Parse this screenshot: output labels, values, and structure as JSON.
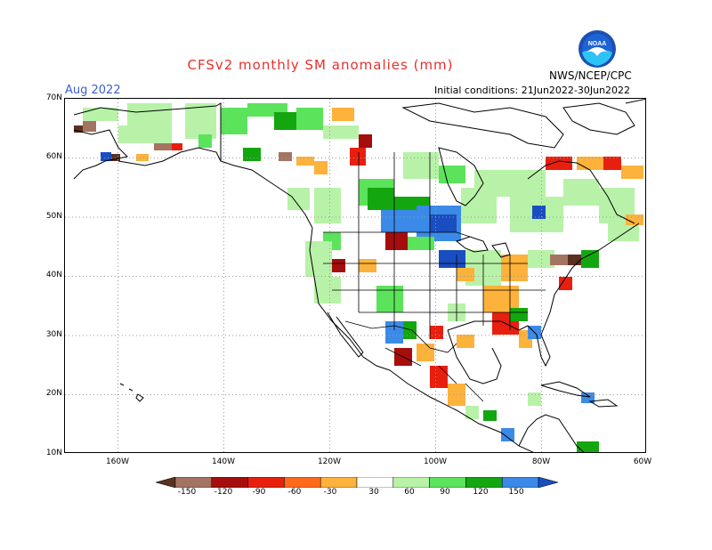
{
  "header": {
    "title": "CFSv2 monthly SM anomalies (mm)",
    "month": "Aug 2022",
    "initial_conditions": "Initial conditions: 21Jun2022-30Jun2022",
    "organization": "NWS/NCEP/CPC",
    "logo_text": "NOAA"
  },
  "axes": {
    "lat_labels": [
      "70N",
      "60N",
      "50N",
      "40N",
      "30N",
      "20N",
      "10N"
    ],
    "lon_labels": [
      "160W",
      "140W",
      "120W",
      "100W",
      "80W",
      "60W"
    ],
    "lat_range": [
      10,
      70
    ],
    "lon_range": [
      -170,
      -60
    ]
  },
  "colorbar": {
    "labels": [
      "-150",
      "-120",
      "-90",
      "-60",
      "-30",
      "30",
      "60",
      "90",
      "120",
      "150"
    ],
    "colors": [
      "#5a3020",
      "#a47462",
      "#a60d0d",
      "#e81f0f",
      "#ff6a1a",
      "#fcb23b",
      "#ffffff",
      "#b8f2a8",
      "#5be35b",
      "#14a60f",
      "#3b8ae8",
      "#1a4ec0"
    ]
  },
  "colors": {
    "title": "#e8302a",
    "month": "#3a5fd0",
    "grid": "#999999"
  }
}
